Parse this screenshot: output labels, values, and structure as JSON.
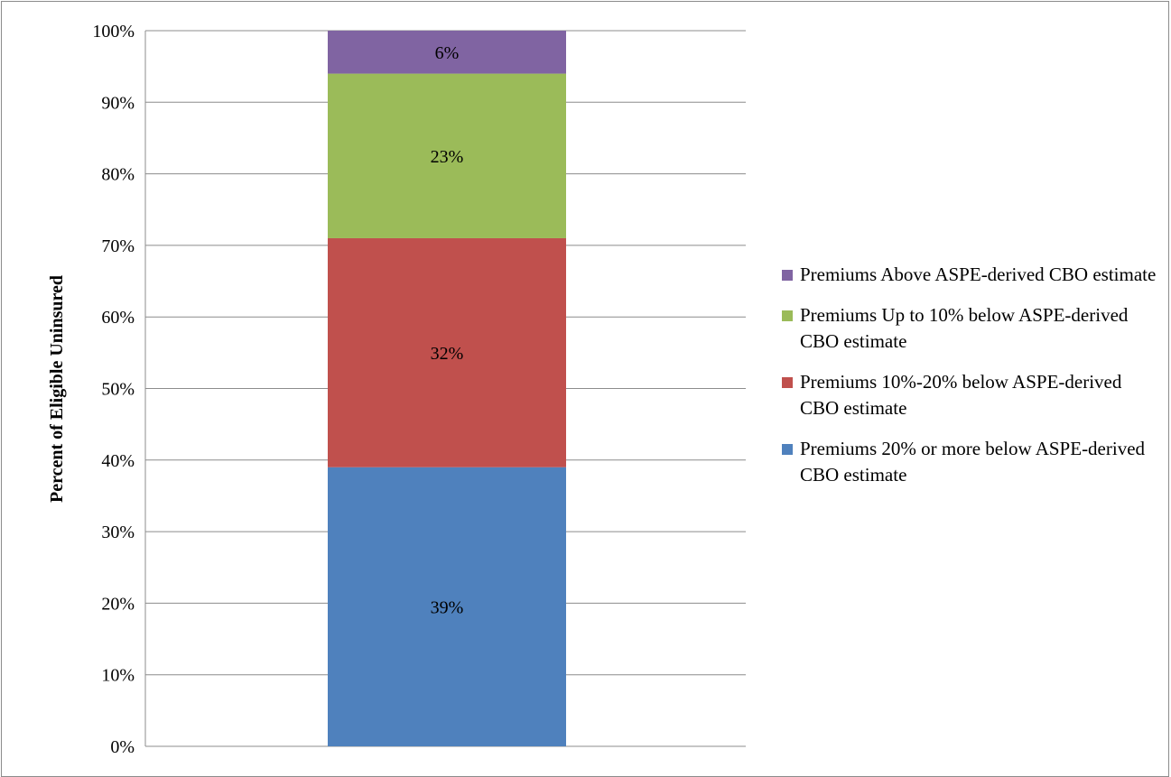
{
  "chart_data": {
    "type": "bar",
    "stacked": true,
    "categories": [
      ""
    ],
    "series": [
      {
        "name": "Premiums 20% or more below ASPE-derived CBO estimate",
        "values": [
          39
        ],
        "label": "39%",
        "color": "#4f81bd"
      },
      {
        "name": "Premiums 10%-20% below ASPE-derived CBO estimate",
        "values": [
          32
        ],
        "label": "32%",
        "color": "#c0504d"
      },
      {
        "name": "Premiums Up to 10% below ASPE-derived CBO estimate",
        "values": [
          23
        ],
        "label": "23%",
        "color": "#9bbb59"
      },
      {
        "name": "Premiums Above ASPE-derived CBO estimate",
        "values": [
          6
        ],
        "label": "6%",
        "color": "#8064a2"
      }
    ],
    "ylabel": "Percent of Eligible Uninsured",
    "ylim": [
      0,
      100
    ],
    "yticks": [
      "0%",
      "10%",
      "20%",
      "30%",
      "40%",
      "50%",
      "60%",
      "70%",
      "80%",
      "90%",
      "100%"
    ],
    "grid": true,
    "legend_position": "right"
  }
}
